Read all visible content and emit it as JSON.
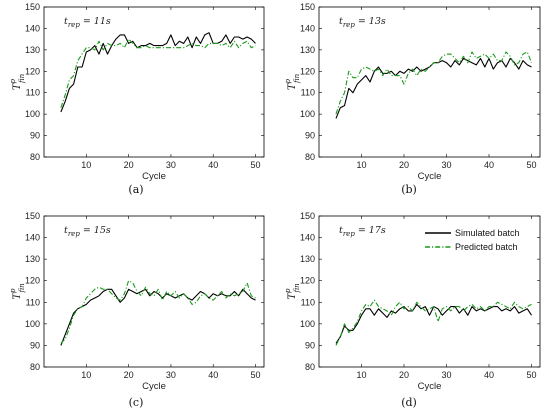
{
  "chart_data": [
    {
      "type": "line",
      "panel_label": "(a)",
      "annotation": "t_rep = 11s",
      "annotation_base": "t",
      "annotation_sub": "rep",
      "annotation_rest": " = 11s",
      "xlabel": "Cycle",
      "ylabel_base": "T",
      "ylabel_sup": "p",
      "ylabel_sub": "fin",
      "xlim": [
        0,
        52
      ],
      "ylim": [
        80,
        150
      ],
      "xticks": [
        10,
        20,
        30,
        40,
        50
      ],
      "yticks": [
        80,
        90,
        100,
        110,
        120,
        130,
        140,
        150
      ],
      "x": [
        4,
        5,
        6,
        7,
        8,
        9,
        10,
        11,
        12,
        13,
        14,
        15,
        16,
        17,
        18,
        19,
        20,
        21,
        22,
        23,
        24,
        25,
        26,
        27,
        28,
        29,
        30,
        31,
        32,
        33,
        34,
        35,
        36,
        37,
        38,
        39,
        40,
        41,
        42,
        43,
        44,
        45,
        46,
        47,
        48,
        49,
        50
      ],
      "series": [
        {
          "name": "Simulated batch",
          "color": "#000000",
          "dash": "solid",
          "values": [
            101,
            106,
            112,
            114,
            122,
            122,
            129,
            130,
            132,
            128,
            133,
            128,
            132,
            135,
            137,
            137,
            133,
            134,
            131,
            132,
            132,
            133,
            132,
            132,
            132,
            133,
            137,
            132,
            134,
            133,
            136,
            131,
            136,
            133,
            137,
            138,
            133,
            133,
            134,
            137,
            133,
            136,
            136,
            135,
            136,
            135,
            133
          ]
        },
        {
          "name": "Predicted batch",
          "color": "#1a9a1a",
          "dash": "dashdot",
          "values": [
            103,
            109,
            116,
            118,
            125,
            128,
            131,
            131,
            130,
            134,
            130,
            133,
            132,
            132,
            133,
            131,
            135,
            133,
            131,
            131,
            132,
            131,
            131,
            131,
            131,
            131,
            131,
            131,
            131,
            131,
            132,
            133,
            132,
            132,
            131,
            133,
            133,
            133,
            132,
            133,
            131,
            134,
            131,
            133,
            134,
            131,
            132
          ]
        }
      ]
    },
    {
      "type": "line",
      "panel_label": "(b)",
      "annotation": "t_rep = 13s",
      "annotation_base": "t",
      "annotation_sub": "rep",
      "annotation_rest": " = 13s",
      "xlabel": "Cycle",
      "ylabel_base": "T",
      "ylabel_sup": "p",
      "ylabel_sub": "fin",
      "xlim": [
        0,
        52
      ],
      "ylim": [
        80,
        150
      ],
      "xticks": [
        10,
        20,
        30,
        40,
        50
      ],
      "yticks": [
        80,
        90,
        100,
        110,
        120,
        130,
        140,
        150
      ],
      "x": [
        4,
        5,
        6,
        7,
        8,
        9,
        10,
        11,
        12,
        13,
        14,
        15,
        16,
        17,
        18,
        19,
        20,
        21,
        22,
        23,
        24,
        25,
        26,
        27,
        28,
        29,
        30,
        31,
        32,
        33,
        34,
        35,
        36,
        37,
        38,
        39,
        40,
        41,
        42,
        43,
        44,
        45,
        46,
        47,
        48,
        49,
        50
      ],
      "series": [
        {
          "name": "Simulated batch",
          "color": "#000000",
          "dash": "solid",
          "values": [
            98,
            103,
            104,
            112,
            110,
            114,
            116,
            118,
            115,
            120,
            122,
            119,
            119,
            120,
            118,
            120,
            119,
            121,
            120,
            122,
            120,
            121,
            122,
            124,
            124,
            125,
            124,
            122,
            125,
            123,
            126,
            125,
            124,
            123,
            126,
            122,
            126,
            121,
            124,
            125,
            122,
            126,
            124,
            121,
            125,
            123,
            122
          ]
        },
        {
          "name": "Predicted batch",
          "color": "#1a9a1a",
          "dash": "dashdot",
          "values": [
            100,
            106,
            110,
            120,
            117,
            117,
            121,
            122,
            121,
            120,
            121,
            118,
            121,
            118,
            118,
            118,
            114,
            119,
            121,
            118,
            121,
            120,
            122,
            124,
            124,
            127,
            128,
            128,
            126,
            124,
            127,
            124,
            129,
            126,
            127,
            128,
            126,
            128,
            125,
            125,
            129,
            127,
            123,
            124,
            128,
            129,
            124
          ]
        }
      ]
    },
    {
      "type": "line",
      "panel_label": "(c)",
      "annotation": "t_rep = 15s",
      "annotation_base": "t",
      "annotation_sub": "rep",
      "annotation_rest": " = 15s",
      "xlabel": "Cycle",
      "ylabel_base": "T",
      "ylabel_sup": "p",
      "ylabel_sub": "fin",
      "xlim": [
        0,
        52
      ],
      "ylim": [
        80,
        150
      ],
      "xticks": [
        10,
        20,
        30,
        40,
        50
      ],
      "yticks": [
        80,
        90,
        100,
        110,
        120,
        130,
        140,
        150
      ],
      "x": [
        4,
        5,
        6,
        7,
        8,
        9,
        10,
        11,
        12,
        13,
        14,
        15,
        16,
        17,
        18,
        19,
        20,
        21,
        22,
        23,
        24,
        25,
        26,
        27,
        28,
        29,
        30,
        31,
        32,
        33,
        34,
        35,
        36,
        37,
        38,
        39,
        40,
        41,
        42,
        43,
        44,
        45,
        46,
        47,
        48,
        49,
        50
      ],
      "series": [
        {
          "name": "Simulated batch",
          "color": "#000000",
          "dash": "solid",
          "values": [
            90,
            95,
            100,
            105,
            107,
            108,
            109,
            111,
            112,
            113,
            115,
            116,
            116,
            113,
            110,
            112,
            116,
            115,
            114,
            115,
            116,
            113,
            115,
            114,
            112,
            114,
            113,
            112,
            113,
            114,
            112,
            111,
            113,
            115,
            114,
            112,
            114,
            113,
            114,
            113,
            113,
            115,
            113,
            116,
            114,
            112,
            111
          ]
        },
        {
          "name": "Predicted batch",
          "color": "#1a9a1a",
          "dash": "dashdot",
          "values": [
            91,
            93,
            98,
            104,
            107,
            108,
            112,
            114,
            116,
            117,
            116,
            116,
            114,
            112,
            111,
            114,
            120,
            119,
            115,
            113,
            117,
            114,
            113,
            116,
            111,
            115,
            113,
            115,
            112,
            114,
            112,
            109,
            110,
            113,
            114,
            112,
            111,
            113,
            115,
            112,
            114,
            113,
            114,
            115,
            119,
            113,
            112
          ]
        }
      ]
    },
    {
      "type": "line",
      "panel_label": "(d)",
      "annotation": "t_rep = 17s",
      "annotation_base": "t",
      "annotation_sub": "rep",
      "annotation_rest": " = 17s",
      "xlabel": "Cycle",
      "ylabel_base": "T",
      "ylabel_sup": "p",
      "ylabel_sub": "fin",
      "xlim": [
        0,
        52
      ],
      "ylim": [
        80,
        150
      ],
      "xticks": [
        10,
        20,
        30,
        40,
        50
      ],
      "yticks": [
        80,
        90,
        100,
        110,
        120,
        130,
        140,
        150
      ],
      "legend_position": "top-right",
      "x": [
        4,
        5,
        6,
        7,
        8,
        9,
        10,
        11,
        12,
        13,
        14,
        15,
        16,
        17,
        18,
        19,
        20,
        21,
        22,
        23,
        24,
        25,
        26,
        27,
        28,
        29,
        30,
        31,
        32,
        33,
        34,
        35,
        36,
        37,
        38,
        39,
        40,
        41,
        42,
        43,
        44,
        45,
        46,
        47,
        48,
        49,
        50
      ],
      "series": [
        {
          "name": "Simulated batch",
          "color": "#000000",
          "dash": "solid",
          "values": [
            91,
            94,
            99,
            97,
            97,
            100,
            104,
            107,
            107,
            104,
            107,
            105,
            103,
            106,
            105,
            107,
            108,
            106,
            106,
            109,
            107,
            108,
            104,
            108,
            107,
            104,
            106,
            108,
            108,
            105,
            107,
            104,
            108,
            106,
            107,
            106,
            107,
            108,
            108,
            106,
            107,
            106,
            108,
            105,
            106,
            107,
            104
          ]
        },
        {
          "name": "Predicted batch",
          "color": "#1a9a1a",
          "dash": "dashdot",
          "values": [
            90,
            94,
            100,
            96,
            98,
            101,
            106,
            109,
            108,
            111,
            108,
            107,
            106,
            104,
            108,
            110,
            107,
            108,
            106,
            110,
            108,
            106,
            107,
            108,
            101,
            107,
            108,
            106,
            108,
            108,
            106,
            108,
            109,
            107,
            108,
            106,
            108,
            108,
            110,
            109,
            108,
            107,
            110,
            108,
            107,
            108,
            109
          ]
        }
      ]
    }
  ]
}
